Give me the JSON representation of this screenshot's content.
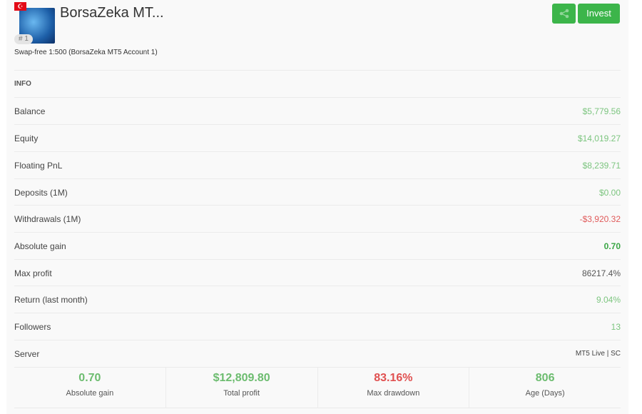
{
  "header": {
    "flag": "Turkey",
    "flag_glyph": "☪",
    "rank": "# 1",
    "title": "BorsaZeka MT...",
    "subtitle": "Swap-free 1:500 (BorsaZeka MT5 Account 1)",
    "share_icon": "share-icon",
    "invest_label": "Invest"
  },
  "info": {
    "heading": "INFO",
    "rows": [
      {
        "label": "Balance",
        "value": "$5,779.56"
      },
      {
        "label": "Equity",
        "value": "$14,019.27"
      },
      {
        "label": "Floating PnL",
        "value": "$8,239.71"
      },
      {
        "label": "Deposits (1M)",
        "value": "$0.00"
      },
      {
        "label": "Withdrawals (1M)",
        "value": "-$3,920.32"
      },
      {
        "label": "Absolute gain",
        "value": "0.70"
      },
      {
        "label": "Max profit",
        "value": "86217.4%"
      },
      {
        "label": "Return (last month)",
        "value": "9.04%"
      },
      {
        "label": "Followers",
        "value": "13"
      },
      {
        "label": "Server",
        "value": "MT5 Live | SC"
      }
    ]
  },
  "stats": [
    {
      "value": "0.70",
      "label": "Absolute gain"
    },
    {
      "value": "$12,809.80",
      "label": "Total profit"
    },
    {
      "value": "83.16%",
      "label": "Max drawdown"
    },
    {
      "value": "806",
      "label": "Age (Days)"
    }
  ],
  "colors": {
    "positive": "#7cc57f",
    "negative": "#e05a5a",
    "button": "#3cb54a"
  }
}
